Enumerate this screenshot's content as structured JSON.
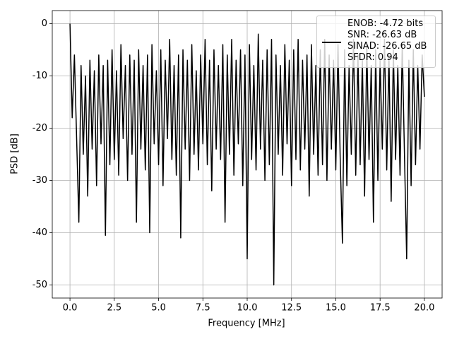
{
  "chart_data": {
    "type": "line",
    "x_label": "Frequency [MHz]",
    "y_label": "PSD [dB]",
    "x": [
      0,
      0.125,
      0.25,
      0.375,
      0.5,
      0.625,
      0.75,
      0.875,
      1,
      1.125,
      1.25,
      1.375,
      1.5,
      1.625,
      1.75,
      1.875,
      2,
      2.125,
      2.25,
      2.375,
      2.5,
      2.625,
      2.75,
      2.875,
      3,
      3.125,
      3.25,
      3.375,
      3.5,
      3.625,
      3.75,
      3.875,
      4,
      4.125,
      4.25,
      4.375,
      4.5,
      4.625,
      4.75,
      4.875,
      5,
      5.125,
      5.25,
      5.375,
      5.5,
      5.625,
      5.75,
      5.875,
      6,
      6.125,
      6.25,
      6.375,
      6.5,
      6.625,
      6.75,
      6.875,
      7,
      7.125,
      7.25,
      7.375,
      7.5,
      7.625,
      7.75,
      7.875,
      8,
      8.125,
      8.25,
      8.375,
      8.5,
      8.625,
      8.75,
      8.875,
      9,
      9.125,
      9.25,
      9.375,
      9.5,
      9.625,
      9.75,
      9.875,
      10,
      10.125,
      10.25,
      10.375,
      10.5,
      10.625,
      10.75,
      10.875,
      11,
      11.125,
      11.25,
      11.375,
      11.5,
      11.625,
      11.75,
      11.875,
      12,
      12.125,
      12.25,
      12.375,
      12.5,
      12.625,
      12.75,
      12.875,
      13,
      13.125,
      13.25,
      13.375,
      13.5,
      13.625,
      13.75,
      13.875,
      14,
      14.125,
      14.25,
      14.375,
      14.5,
      14.625,
      14.75,
      14.875,
      15,
      15.125,
      15.25,
      15.375,
      15.5,
      15.625,
      15.75,
      15.875,
      16,
      16.125,
      16.25,
      16.375,
      16.5,
      16.625,
      16.75,
      16.875,
      17,
      17.125,
      17.25,
      17.375,
      17.5,
      17.625,
      17.75,
      17.875,
      18,
      18.125,
      18.25,
      18.375,
      18.5,
      18.625,
      18.75,
      18.875,
      19,
      19.125,
      19.25,
      19.375,
      19.5,
      19.625,
      19.75,
      19.875,
      20
    ],
    "series": [
      {
        "name": "ENOB: -4.72 bits\nSNR: -26.63 dB\nSINAD: -26.65 dB\nSFDR: 0.94",
        "color": "#000000",
        "values": [
          0,
          -18,
          -6,
          -22,
          -38,
          -8,
          -25,
          -10,
          -33,
          -7,
          -24,
          -9,
          -31,
          -6,
          -23,
          -8,
          -40.5,
          -7,
          -27,
          -5,
          -26,
          -9,
          -29,
          -4,
          -22,
          -8,
          -30,
          -6,
          -25,
          -7,
          -38,
          -5,
          -24,
          -8,
          -28,
          -6,
          -40,
          -4,
          -23,
          -9,
          -27,
          -5,
          -31,
          -7,
          -22,
          -3,
          -26,
          -8,
          -29,
          -6,
          -41,
          -5,
          -24,
          -7,
          -30,
          -4,
          -25,
          -9,
          -28,
          -6,
          -23,
          -3,
          -27,
          -7,
          -32,
          -5,
          -24,
          -8,
          -26,
          -4,
          -38,
          -6,
          -25,
          -3,
          -29,
          -7,
          -23,
          -5,
          -31,
          -6,
          -45,
          -4,
          -26,
          -8,
          -28,
          -2,
          -24,
          -7,
          -30,
          -5,
          -27,
          -3,
          -50,
          -6,
          -25,
          -8,
          -29,
          -4,
          -23,
          -7,
          -31,
          -5,
          -26,
          -3,
          -28,
          -7,
          -24,
          -6,
          -33,
          -4,
          -25,
          -8,
          -29,
          -5,
          -27,
          -3,
          -30,
          -6,
          -24,
          -7,
          -28,
          -4,
          -26,
          -42,
          -5,
          -31,
          -8,
          -25,
          -3,
          -29,
          -6,
          -27,
          -7,
          -33,
          -4,
          -26,
          -8,
          -38,
          -5,
          -30,
          -7,
          -24,
          -3,
          -28,
          -6,
          -34,
          -5,
          -26,
          -8,
          -29,
          -4,
          -25,
          -45,
          -7,
          -31,
          -5,
          -27,
          -8,
          -24,
          -6,
          -14
        ]
      }
    ],
    "xlim": [
      -1.0,
      21.0
    ],
    "xticks": [
      {
        "value": 0,
        "label": "0.0"
      },
      2.5,
      {
        "value": 5,
        "label": "5.0"
      },
      7.5,
      {
        "value": 10,
        "label": "10.0"
      },
      12.5,
      {
        "value": 15,
        "label": "15.0"
      },
      17.5,
      {
        "value": 20,
        "label": "20.0"
      }
    ],
    "ylim": [
      -52.5,
      2.5
    ],
    "yticks": [
      -50,
      -40,
      -30,
      -20,
      -10,
      0
    ],
    "grid": true,
    "legend": "upper right"
  }
}
